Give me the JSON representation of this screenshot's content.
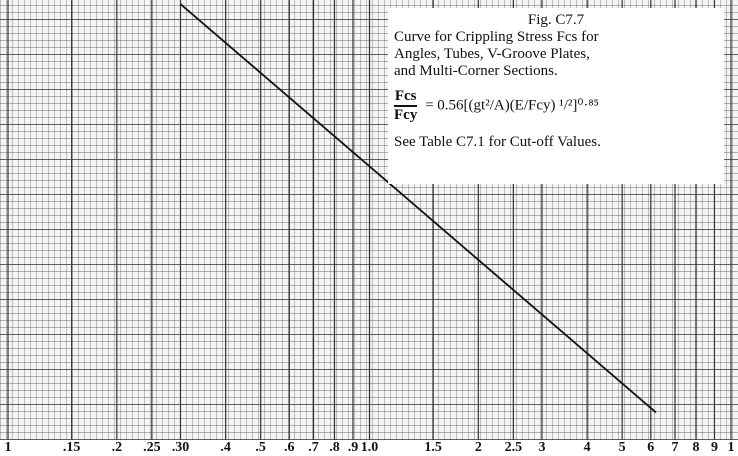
{
  "chart_data": {
    "type": "line",
    "annotation": {
      "figure": "Fig. C7.7",
      "lines": [
        "Curve for Crippling Stress Fcs for",
        "Angles, Tubes, V-Groove Plates,",
        "and Multi-Corner Sections."
      ],
      "formula_numerator": "Fcs",
      "formula_denominator": "Fcy",
      "formula_expression": "= 0.56[(gt²/A)(E/Fcy) ¹/²]⁰·⁸⁵",
      "note": "See Table C7.1 for Cut-off Values."
    },
    "xscale": "log",
    "yscale": "log",
    "xlim": [
      0.1,
      10
    ],
    "ylim": [
      0.1,
      1.6
    ],
    "xticks": [
      {
        "value": 0.1,
        "label": "1"
      },
      {
        "value": 0.15,
        "label": ".15"
      },
      {
        "value": 0.2,
        "label": ".2"
      },
      {
        "value": 0.25,
        "label": ".25"
      },
      {
        "value": 0.3,
        "label": ".30"
      },
      {
        "value": 0.4,
        "label": ".4"
      },
      {
        "value": 0.5,
        "label": ".5"
      },
      {
        "value": 0.6,
        "label": ".6"
      },
      {
        "value": 0.7,
        "label": ".7"
      },
      {
        "value": 0.8,
        "label": ".8"
      },
      {
        "value": 0.9,
        "label": ".9"
      },
      {
        "value": 1,
        "label": "1.0"
      },
      1.5,
      2,
      2.5,
      3,
      4,
      5,
      6,
      7,
      8,
      9,
      {
        "value": 10,
        "label": "1"
      }
    ],
    "grid": true,
    "series": [
      {
        "color": "#111111",
        "x": [
          0.3,
          6.2
        ],
        "values": [
          1.56,
          0.119
        ]
      }
    ]
  }
}
